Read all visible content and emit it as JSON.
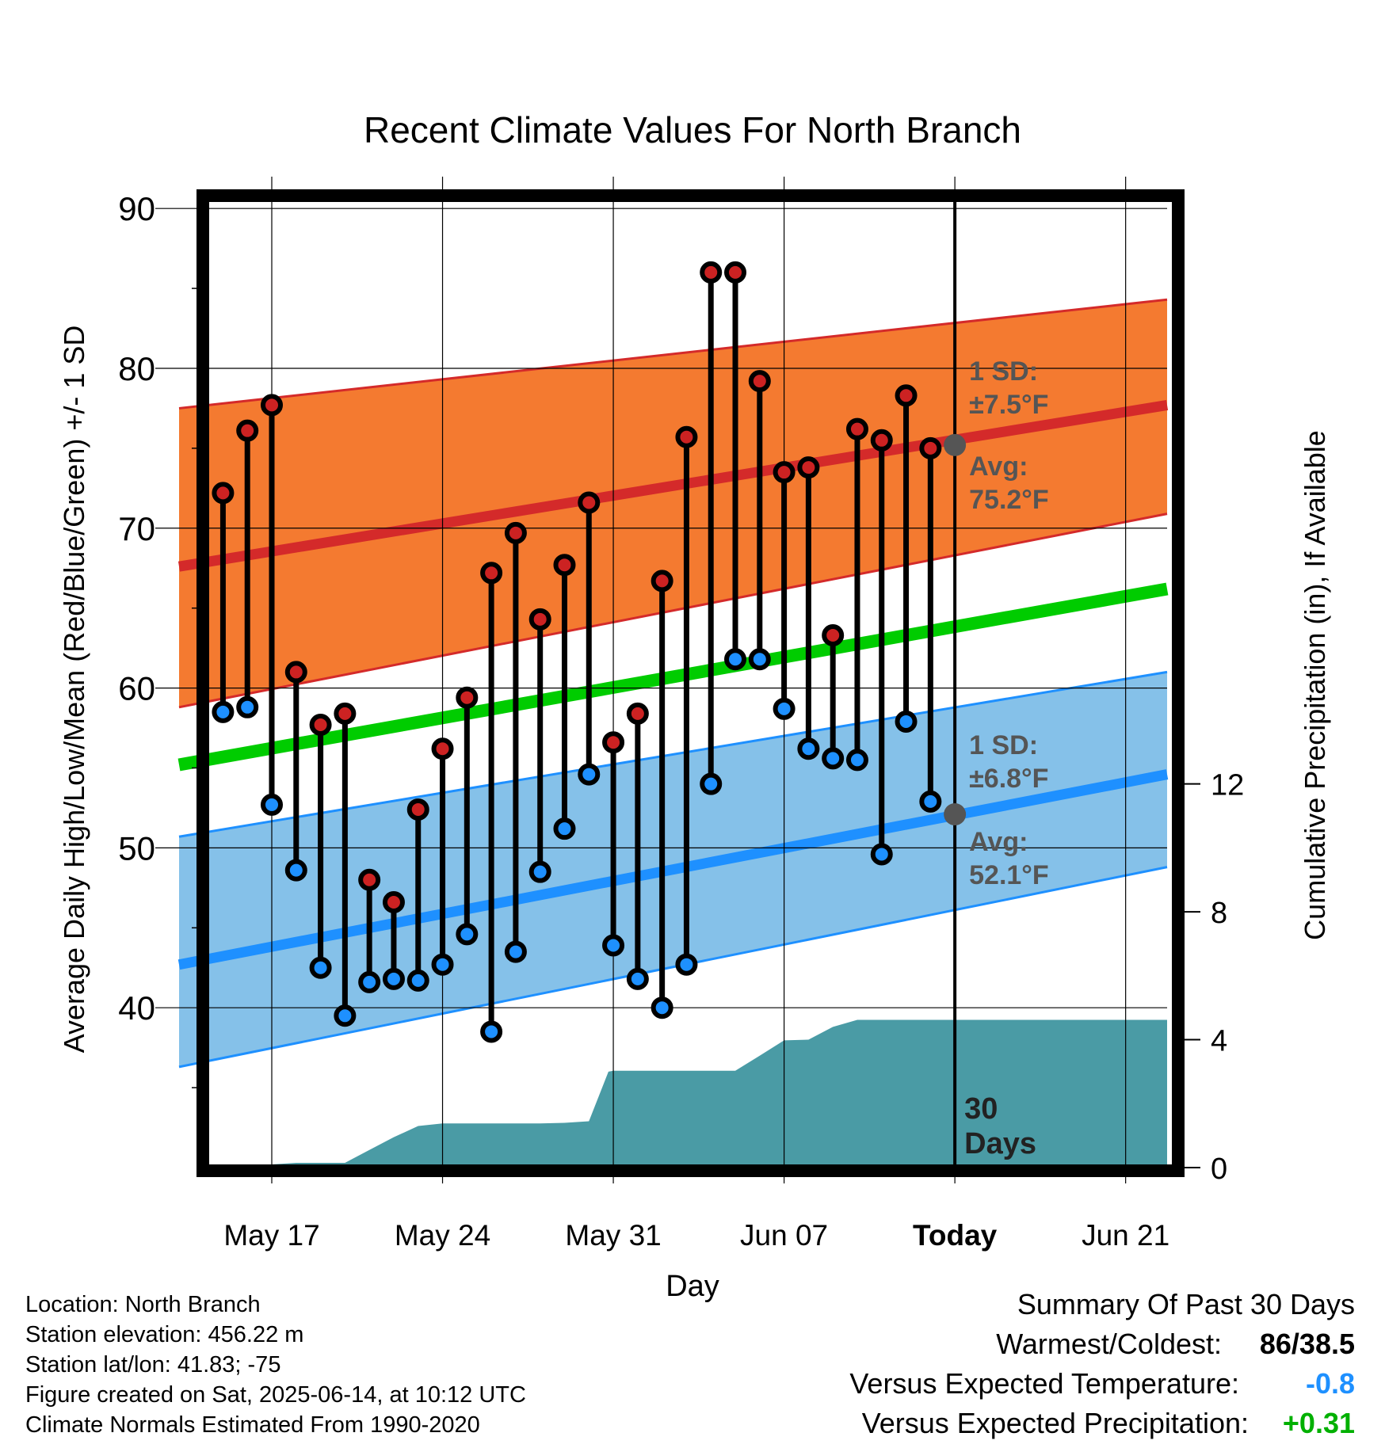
{
  "chart_data": {
    "type": "line",
    "title": "Recent Climate Values For North Branch",
    "xlabel": "Day",
    "ylabel": "Average Daily High/Low/Mean (Red/Blue/Green) +/- 1 SD",
    "y2label": "Cumulative Precipitation (in), If Available",
    "ylim": [
      30,
      91
    ],
    "y2lim": [
      0,
      30.5
    ],
    "yticks": [
      "90",
      "80",
      "70",
      "60",
      "50",
      "40"
    ],
    "y2ticks": [
      "0",
      "4",
      "8",
      "12"
    ],
    "xticks": [
      "May 17",
      "May 24",
      "May 31",
      "Jun 07",
      "Today",
      "Jun 21"
    ],
    "xtick_days": [
      17,
      24,
      31,
      38,
      45,
      52
    ],
    "xlim_days": [
      13.2,
      53.7
    ],
    "today_day": 45,
    "colors": {
      "high_band": "#f47a30",
      "high_line": "#d42a2a",
      "low_band": "#85c1e9",
      "low_line": "#1e90ff",
      "mean_line": "#00cc00",
      "precip": "#4a9ba5",
      "high_dot": "#cc2222",
      "low_dot": "#1e90ff",
      "marker": "#555555",
      "annot": "#555555"
    },
    "normals_days": [
      13.2,
      53.7
    ],
    "normal_high": [
      67.6,
      77.7
    ],
    "normal_high_sd_upper": [
      77.5,
      84.3
    ],
    "normal_high_sd_lower": [
      58.8,
      70.9
    ],
    "normal_low": [
      42.7,
      54.6
    ],
    "normal_low_sd_upper": [
      50.7,
      61.0
    ],
    "normal_low_sd_lower": [
      36.3,
      48.8
    ],
    "normal_mean": [
      55.2,
      66.2
    ],
    "observations": {
      "days": [
        15,
        16,
        17,
        18,
        19,
        20,
        21,
        22,
        23,
        24,
        25,
        26,
        27,
        28,
        29,
        30,
        31,
        32,
        33,
        34,
        35,
        36,
        37,
        38,
        39,
        40,
        41,
        42,
        43,
        44
      ],
      "high": [
        72.2,
        76.1,
        77.7,
        61.0,
        57.7,
        58.4,
        48.0,
        46.6,
        52.4,
        56.2,
        59.4,
        67.2,
        69.7,
        64.3,
        67.7,
        71.6,
        56.6,
        58.4,
        66.7,
        75.7,
        86.0,
        86.0,
        79.2,
        73.5,
        73.8,
        63.3,
        76.2,
        75.5,
        78.3,
        75.0
      ],
      "low": [
        58.5,
        58.8,
        52.7,
        48.6,
        42.5,
        39.5,
        41.6,
        41.8,
        41.7,
        42.7,
        44.6,
        38.5,
        43.5,
        48.5,
        51.2,
        54.6,
        43.9,
        41.8,
        40.0,
        42.7,
        54.0,
        61.8,
        61.8,
        58.7,
        56.2,
        55.6,
        55.5,
        49.6,
        57.9,
        52.9
      ]
    },
    "precip_cumulative": {
      "days": [
        13.2,
        15,
        16,
        17,
        18,
        19,
        20,
        21,
        22,
        23,
        24,
        25,
        26,
        27,
        28,
        29,
        30,
        30.8,
        31,
        32,
        33,
        34,
        35,
        36,
        37,
        38,
        39,
        40,
        41,
        42,
        43,
        44,
        45,
        53.7
      ],
      "values": [
        0,
        0,
        0.05,
        0.1,
        0.15,
        0.15,
        0.15,
        0.55,
        0.95,
        1.3,
        1.38,
        1.38,
        1.38,
        1.38,
        1.38,
        1.4,
        1.45,
        3.0,
        3.03,
        3.03,
        3.03,
        3.03,
        3.03,
        3.03,
        3.5,
        3.98,
        4.0,
        4.4,
        4.62,
        4.62,
        4.62,
        4.62,
        4.62,
        4.62
      ]
    },
    "annotations": {
      "high_sd_label": "1 SD:",
      "high_sd_value": "±7.5°F",
      "high_avg_label": "Avg:",
      "high_avg_value": "75.2°F",
      "high_avg": 75.2,
      "low_sd_label": "1 SD:",
      "low_sd_value": "±6.8°F",
      "low_avg_label": "Avg:",
      "low_avg_value": "52.1°F",
      "low_avg": 52.1,
      "days_label_1": "30",
      "days_label_2": "Days"
    }
  },
  "footer": {
    "location": "Location: North Branch",
    "elevation": "Station elevation: 456.22 m",
    "latlon": "Station lat/lon: 41.83; -75",
    "created": "Figure created on Sat, 2025-06-14, at 10:12 UTC",
    "normals": "Climate Normals Estimated From 1990-2020"
  },
  "summary": {
    "title": "Summary Of Past 30 Days",
    "warm_cold_label": "Warmest/Coldest:",
    "warm_value": "86",
    "slash": "/",
    "cold_value": "38.5",
    "temp_label": "Versus Expected Temperature:",
    "temp_value": "-0.8",
    "temp_color": "#1e90ff",
    "precip_label": "Versus Expected Precipitation:",
    "precip_value": "+0.31",
    "precip_color": "#00b000"
  }
}
